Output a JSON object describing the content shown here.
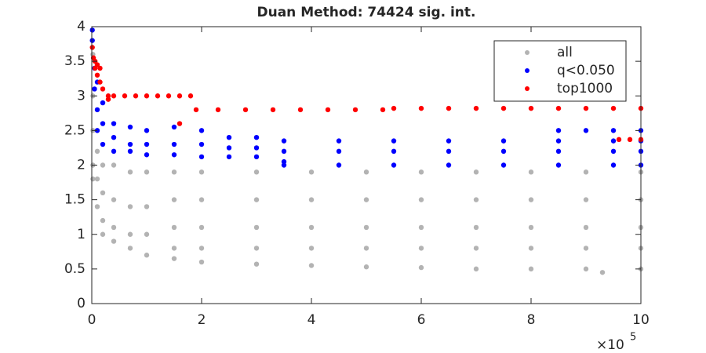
{
  "chart_data": {
    "type": "scatter",
    "title": "Duan Method: 74424 sig. int.",
    "x_multiplier": {
      "base": "×10",
      "exponent": "5"
    },
    "xlim": [
      0,
      10
    ],
    "xticks": [
      0,
      2,
      4,
      6,
      8,
      10
    ],
    "ylim": [
      0,
      4
    ],
    "yticks": [
      0,
      0.5,
      1,
      1.5,
      2,
      2.5,
      3,
      3.5,
      4
    ],
    "legend": "top-right",
    "series": [
      {
        "name": "all",
        "color": "#b3b3b3",
        "x": [
          0.02,
          0.02,
          0.02,
          0.02,
          0.02,
          0.1,
          0.1,
          0.1,
          0.2,
          0.2,
          0.2,
          0.2,
          0.4,
          0.4,
          0.4,
          0.4,
          0.7,
          0.7,
          0.7,
          0.7,
          1,
          1,
          1,
          1,
          1.5,
          1.5,
          1.5,
          1.5,
          1.5,
          2,
          2,
          2,
          2,
          2,
          3,
          3,
          3,
          3,
          3,
          4,
          4,
          4,
          4,
          4,
          5,
          5,
          5,
          5,
          5,
          6,
          6,
          6,
          6,
          6,
          7,
          7,
          7,
          7,
          7,
          8,
          8,
          8,
          8,
          8,
          9,
          9,
          9,
          9,
          9,
          10,
          10,
          10,
          10,
          10,
          9.3
        ],
        "values": [
          3.6,
          3.0,
          2.5,
          2.0,
          1.8,
          2.2,
          1.8,
          1.4,
          2.0,
          1.6,
          1.2,
          1.0,
          2.0,
          1.5,
          1.1,
          0.9,
          1.9,
          1.4,
          1.0,
          0.8,
          1.9,
          1.4,
          1.0,
          0.7,
          1.9,
          1.5,
          1.1,
          0.8,
          0.65,
          1.9,
          1.5,
          1.1,
          0.8,
          0.6,
          1.9,
          1.5,
          1.1,
          0.8,
          0.57,
          1.9,
          1.5,
          1.1,
          0.8,
          0.55,
          1.9,
          1.5,
          1.1,
          0.8,
          0.53,
          1.9,
          1.5,
          1.1,
          0.8,
          0.52,
          1.9,
          1.5,
          1.1,
          0.8,
          0.5,
          1.9,
          1.5,
          1.1,
          0.8,
          0.5,
          1.9,
          1.5,
          1.1,
          0.8,
          0.5,
          1.9,
          1.5,
          1.1,
          0.8,
          0.5,
          0.45
        ]
      },
      {
        "name": "q<0.050",
        "color": "#0000ff",
        "x": [
          0.01,
          0.01,
          0.05,
          0.05,
          0.1,
          0.1,
          0.1,
          0.2,
          0.2,
          0.2,
          0.4,
          0.4,
          0.4,
          0.7,
          0.7,
          0.7,
          1,
          1,
          1,
          1.5,
          1.5,
          1.5,
          2,
          2,
          2,
          2.5,
          2.5,
          2.5,
          3,
          3,
          3,
          3.5,
          3.5,
          3.5,
          3.5,
          4.5,
          4.5,
          4.5,
          5.5,
          5.5,
          5.5,
          6.5,
          6.5,
          6.5,
          7.5,
          7.5,
          7.5,
          8.5,
          8.5,
          8.5,
          9.5,
          9.5,
          9.5,
          10,
          10,
          10,
          8.5,
          9,
          9.5,
          10
        ],
        "values": [
          3.95,
          3.8,
          3.4,
          3.1,
          3.2,
          2.8,
          2.5,
          2.9,
          2.6,
          2.3,
          2.6,
          2.4,
          2.2,
          2.55,
          2.3,
          2.2,
          2.5,
          2.3,
          2.15,
          2.55,
          2.3,
          2.15,
          2.5,
          2.3,
          2.12,
          2.4,
          2.25,
          2.12,
          2.4,
          2.25,
          2.12,
          2.35,
          2.2,
          2.05,
          2.0,
          2.35,
          2.2,
          2.0,
          2.35,
          2.2,
          2.0,
          2.35,
          2.2,
          2.0,
          2.35,
          2.2,
          2.0,
          2.35,
          2.2,
          2.0,
          2.35,
          2.2,
          2.0,
          2.35,
          2.2,
          2.0,
          2.5,
          2.5,
          2.5,
          2.5
        ]
      },
      {
        "name": "top1000",
        "color": "#ff0000",
        "x": [
          0.01,
          0.03,
          0.06,
          0.06,
          0.1,
          0.1,
          0.15,
          0.15,
          0.2,
          0.3,
          0.3,
          0.4,
          0.6,
          0.8,
          1.0,
          1.2,
          1.4,
          1.6,
          1.8,
          1.6,
          1.9,
          2.3,
          2.8,
          3.3,
          3.8,
          4.3,
          4.8,
          5.3,
          5.5,
          6,
          6.5,
          7,
          7.5,
          8,
          8.5,
          9,
          9.5,
          10,
          9.6,
          9.8,
          10
        ],
        "values": [
          3.7,
          3.55,
          3.5,
          3.4,
          3.45,
          3.3,
          3.4,
          3.2,
          3.1,
          3.0,
          2.95,
          3.0,
          3.0,
          3.0,
          3.0,
          3.0,
          3.0,
          3.0,
          3.0,
          2.6,
          2.8,
          2.8,
          2.8,
          2.8,
          2.8,
          2.8,
          2.8,
          2.8,
          2.82,
          2.82,
          2.82,
          2.82,
          2.82,
          2.82,
          2.82,
          2.82,
          2.82,
          2.82,
          2.37,
          2.37,
          2.37
        ]
      }
    ]
  }
}
